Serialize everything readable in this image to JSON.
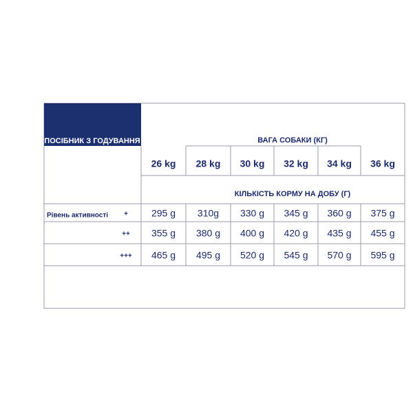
{
  "table": {
    "title": "ПОСІБНИК З ГОДУВАННЯ",
    "group_header": "ВАГА СОБАКИ (КГ)",
    "columns": [
      "26 kg",
      "28 kg",
      "30 kg",
      "32 kg",
      "34 kg",
      "36 kg"
    ],
    "subheader": "КІЛЬКІСТЬ КОРМУ НА ДОБУ (Г)",
    "row_label": "Рівень активності",
    "rows": [
      {
        "level": "+",
        "cells": [
          "295 g",
          "310g",
          "330 g",
          "345 g",
          "360 g",
          "375 g"
        ]
      },
      {
        "level": "++",
        "cells": [
          "355 g",
          "380 g",
          "400 g",
          "420 g",
          "435 g",
          "455 g"
        ]
      },
      {
        "level": "+++",
        "cells": [
          "465 g",
          "495 g",
          "520 g",
          "545 g",
          "570 g",
          "595 g"
        ]
      }
    ]
  }
}
